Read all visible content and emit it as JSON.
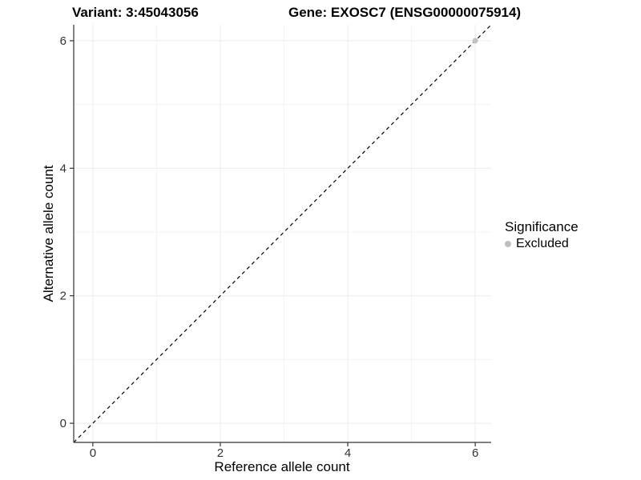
{
  "titles": {
    "variant": "Variant: 3:45043056",
    "gene": "Gene: EXOSC7 (ENSG00000075914)"
  },
  "chart_data": {
    "type": "scatter",
    "title_left": "Variant: 3:45043056",
    "title_right": "Gene: EXOSC7 (ENSG00000075914)",
    "xlabel": "Reference allele count",
    "ylabel": "Alternative allele count",
    "xlim": [
      -0.3,
      6.25
    ],
    "ylim": [
      -0.3,
      6.25
    ],
    "xticks": [
      0,
      2,
      4,
      6
    ],
    "yticks": [
      0,
      2,
      4,
      6
    ],
    "xticks_minor": [
      1,
      3,
      5
    ],
    "yticks_minor": [
      1,
      3,
      5
    ],
    "grid": true,
    "legend_position": "right",
    "reference_line": {
      "slope": 1,
      "intercept": 0,
      "style": "dashed",
      "color": "#000000"
    },
    "series": [
      {
        "name": "Excluded",
        "color": "#C2C2C2",
        "points": [
          [
            6,
            6
          ]
        ]
      }
    ],
    "legend": {
      "title": "Significance",
      "items": [
        {
          "label": "Excluded",
          "color": "#BEBEBE"
        }
      ]
    }
  },
  "legend": {
    "title": "Significance",
    "item_label": "Excluded",
    "item_color": "#BEBEBE"
  },
  "colors": {
    "background": "#FFFFFF",
    "grid_major": "#EBEBEB",
    "grid_minor": "#F3F3F3",
    "axis_line": "#333333",
    "tick_label": "#333333",
    "point": "#C2C2C2",
    "reference_line": "#000000"
  }
}
